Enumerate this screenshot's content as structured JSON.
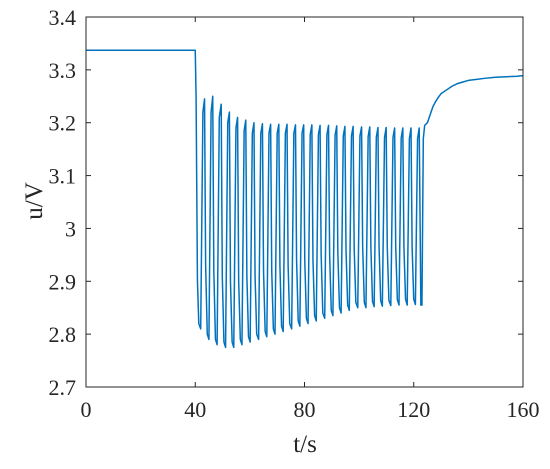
{
  "chart_data": {
    "type": "line",
    "title": "",
    "xlabel": "t/s",
    "ylabel": "u/V",
    "xlim": [
      0,
      160
    ],
    "ylim": [
      2.7,
      3.4
    ],
    "grid": false,
    "legend": "none",
    "x_ticks": [
      0,
      40,
      80,
      120,
      160
    ],
    "x_tick_labels": [
      "0",
      "40",
      "80",
      "120",
      "160"
    ],
    "y_ticks": [
      2.7,
      2.8,
      2.9,
      3.0,
      3.1,
      3.2,
      3.3,
      3.4
    ],
    "y_tick_labels": [
      "2.7",
      "2.8",
      "2.9",
      "3",
      "3.1",
      "3.2",
      "3.3",
      "3.4"
    ],
    "color": "#0072BD",
    "series": [
      {
        "x": [
          0,
          40,
          40.3,
          40.8,
          41.3,
          42.0,
          42.8,
          43.4,
          43.8,
          44.4,
          45.0,
          45.8,
          46.4,
          46.8,
          47.4,
          48.0,
          48.8,
          49.5,
          49.9,
          50.5,
          51.1,
          51.9,
          52.5,
          52.9,
          53.5,
          54.1,
          54.9,
          55.5,
          55.9,
          56.5,
          57.1,
          57.9,
          58.5,
          58.9,
          59.5,
          60.1,
          60.9,
          61.5,
          61.9,
          62.5,
          63.2,
          64.0,
          64.6,
          65.0,
          65.6,
          66.2,
          67.0,
          67.6,
          68.0,
          68.6,
          69.2,
          70.0,
          70.6,
          71.0,
          71.6,
          72.2,
          73.0,
          73.6,
          74.0,
          74.6,
          75.3,
          76.1,
          76.7,
          77.1,
          77.7,
          78.3,
          79.1,
          79.7,
          80.1,
          80.7,
          81.3,
          82.1,
          82.7,
          83.1,
          83.7,
          84.3,
          85.1,
          85.7,
          86.1,
          86.7,
          87.4,
          88.2,
          88.8,
          89.2,
          89.8,
          90.4,
          91.2,
          91.8,
          92.2,
          92.8,
          93.4,
          94.2,
          94.8,
          95.2,
          95.8,
          96.4,
          97.2,
          97.8,
          98.2,
          98.8,
          99.5,
          100.3,
          100.9,
          101.3,
          101.9,
          102.5,
          103.3,
          103.9,
          104.3,
          104.9,
          105.5,
          106.3,
          106.9,
          107.3,
          107.9,
          108.5,
          109.3,
          109.9,
          110.3,
          110.9,
          111.6,
          112.4,
          113.0,
          113.4,
          114.0,
          114.6,
          115.4,
          116.0,
          116.4,
          117.0,
          117.6,
          118.4,
          119.0,
          119.4,
          120.0,
          120.6,
          121.4,
          122.0,
          122.4,
          122.6,
          123.0,
          123.5,
          124.0,
          125.0,
          126.0,
          127.0,
          128.0,
          129.0,
          130.0,
          132.0,
          134.0,
          136.0,
          138.0,
          140.0,
          143.0,
          146.0,
          150.0,
          154.0,
          158.0,
          160.0
        ],
        "y": [
          3.337,
          3.337,
          3.25,
          2.9,
          2.82,
          2.81,
          3.22,
          3.245,
          2.93,
          2.8,
          2.79,
          3.22,
          3.25,
          2.92,
          2.79,
          2.78,
          3.21,
          3.235,
          2.91,
          2.785,
          2.775,
          3.2,
          3.22,
          2.9,
          2.785,
          2.775,
          3.19,
          3.21,
          2.9,
          2.79,
          2.78,
          3.185,
          3.205,
          2.91,
          2.795,
          2.785,
          3.18,
          3.2,
          2.91,
          2.8,
          2.79,
          3.18,
          3.198,
          2.92,
          2.805,
          2.795,
          3.18,
          3.197,
          2.92,
          2.81,
          2.8,
          3.18,
          3.197,
          2.93,
          2.815,
          2.805,
          3.18,
          3.197,
          2.93,
          2.82,
          2.81,
          3.18,
          3.196,
          2.94,
          2.825,
          2.815,
          3.18,
          3.196,
          2.94,
          2.83,
          2.82,
          3.178,
          3.196,
          2.94,
          2.835,
          2.825,
          3.178,
          3.195,
          2.95,
          2.84,
          2.83,
          3.177,
          3.195,
          2.95,
          2.845,
          2.835,
          3.176,
          3.194,
          2.955,
          2.85,
          2.84,
          3.175,
          3.193,
          2.96,
          2.855,
          2.845,
          3.175,
          3.193,
          2.96,
          2.86,
          2.85,
          3.175,
          3.192,
          2.965,
          2.86,
          2.85,
          3.174,
          3.192,
          2.965,
          2.862,
          2.852,
          3.173,
          3.191,
          2.965,
          2.863,
          2.853,
          3.172,
          3.191,
          2.965,
          2.864,
          2.854,
          3.172,
          3.19,
          2.965,
          2.865,
          2.855,
          3.171,
          3.19,
          2.965,
          2.866,
          2.855,
          3.17,
          3.19,
          2.965,
          2.866,
          2.856,
          3.17,
          3.19,
          2.97,
          2.855,
          2.855,
          3.17,
          3.195,
          3.2,
          3.215,
          3.23,
          3.24,
          3.248,
          3.255,
          3.262,
          3.269,
          3.274,
          3.277,
          3.28,
          3.282,
          3.284,
          3.286,
          3.287,
          3.288,
          3.289
        ]
      }
    ]
  }
}
